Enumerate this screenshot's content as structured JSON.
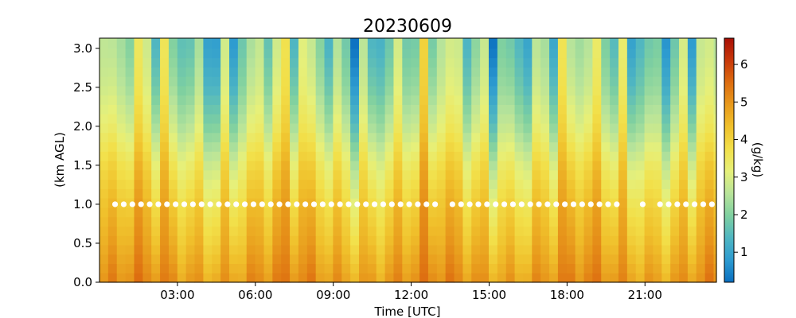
{
  "chart_data": {
    "type": "heatmap",
    "title": "20230609",
    "xlabel": "Time [UTC]",
    "ylabel": "(km AGL)",
    "colorbar_label": "(g/kg)",
    "x_units": "hours UTC",
    "x_range": [
      0,
      23.75
    ],
    "xticks": [
      3,
      6,
      9,
      12,
      15,
      18,
      21
    ],
    "xtick_labels": [
      "03:00",
      "06:00",
      "09:00",
      "12:00",
      "15:00",
      "18:00",
      "21:00"
    ],
    "y_range": [
      0.0,
      3.13
    ],
    "yticks": [
      0.0,
      0.5,
      1.0,
      1.5,
      2.0,
      2.5,
      3.0
    ],
    "ytick_labels": [
      "0.0",
      "0.5",
      "1.0",
      "1.5",
      "2.0",
      "2.5",
      "3.0"
    ],
    "color_range": [
      0.2,
      6.7
    ],
    "cticks": [
      1,
      2,
      3,
      4,
      5,
      6
    ],
    "ctick_labels": [
      "1",
      "2",
      "3",
      "4",
      "5",
      "6"
    ],
    "colormap_stops": [
      "#0a6fc0",
      "#2d9bd0",
      "#4fb6c2",
      "#7fd0a0",
      "#b8e49a",
      "#e6f07a",
      "#f2e04a",
      "#f0c12c",
      "#e89a1c",
      "#dd6d10",
      "#c8380a",
      "#a80f06"
    ],
    "series": [
      {
        "name": "",
        "description_units": "water vapor mixing ratio (g/kg) vs height",
        "column_step_hours": 0.333,
        "profile_heights_km": [
          0.0,
          0.5,
          1.0,
          1.5,
          2.0,
          2.5,
          3.0
        ],
        "profile_mean": [
          5.0,
          4.5,
          4.1,
          3.6,
          2.9,
          2.4,
          2.1
        ]
      }
    ],
    "marker_series": {
      "height_km": 1.0,
      "color": "#ffffff",
      "gap_hours": [
        [
          13.1,
          13.5
        ],
        [
          20.2,
          20.8
        ],
        [
          21.1,
          21.4
        ]
      ]
    }
  }
}
